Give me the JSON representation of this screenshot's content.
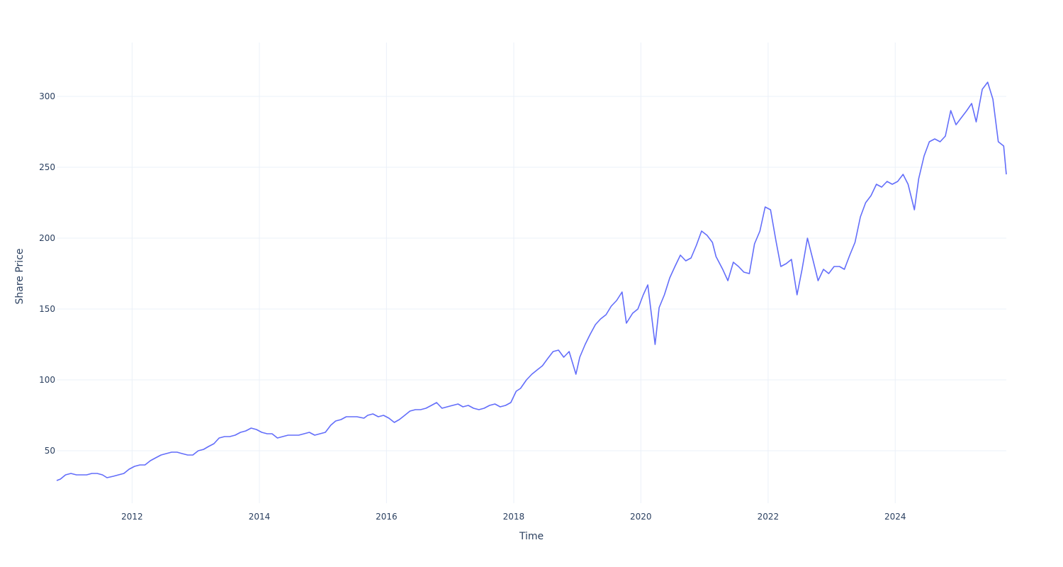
{
  "chart_data": {
    "type": "line",
    "title": "",
    "xlabel": "Time",
    "ylabel": "Share Price",
    "x_tick_labels": [
      "2012",
      "2014",
      "2016",
      "2018",
      "2020",
      "2022",
      "2024"
    ],
    "y_tick_labels": [
      "50",
      "100",
      "150",
      "200",
      "250",
      "300"
    ],
    "xlim": [
      "2010-10-25",
      "2025-09-30"
    ],
    "ylim": [
      13,
      338
    ],
    "grid": true,
    "legend": "none",
    "line_color": "#636efa",
    "grid_color": "#ebf0f8",
    "series": [
      {
        "name": "",
        "x": [
          "2010-10-25",
          "2010-11-15",
          "2010-12-15",
          "2011-01-15",
          "2011-02-15",
          "2011-03-15",
          "2011-04-15",
          "2011-05-15",
          "2011-06-15",
          "2011-07-15",
          "2011-08-10",
          "2011-09-15",
          "2011-10-15",
          "2011-11-15",
          "2011-12-15",
          "2012-01-15",
          "2012-02-15",
          "2012-03-15",
          "2012-04-15",
          "2012-05-15",
          "2012-06-15",
          "2012-07-15",
          "2012-08-15",
          "2012-09-15",
          "2012-10-15",
          "2012-11-15",
          "2012-12-15",
          "2013-01-15",
          "2013-02-15",
          "2013-03-15",
          "2013-04-15",
          "2013-05-15",
          "2013-06-15",
          "2013-07-15",
          "2013-08-15",
          "2013-09-15",
          "2013-10-15",
          "2013-11-15",
          "2013-12-15",
          "2014-01-15",
          "2014-02-15",
          "2014-03-15",
          "2014-04-15",
          "2014-05-15",
          "2014-06-15",
          "2014-07-15",
          "2014-08-15",
          "2014-09-15",
          "2014-10-15",
          "2014-11-15",
          "2014-12-15",
          "2015-01-15",
          "2015-02-15",
          "2015-03-15",
          "2015-04-15",
          "2015-05-15",
          "2015-06-15",
          "2015-07-15",
          "2015-08-25",
          "2015-09-15",
          "2015-10-15",
          "2015-11-15",
          "2015-12-15",
          "2016-01-15",
          "2016-02-15",
          "2016-03-15",
          "2016-04-15",
          "2016-05-15",
          "2016-06-15",
          "2016-07-15",
          "2016-08-15",
          "2016-09-15",
          "2016-10-15",
          "2016-11-15",
          "2016-12-15",
          "2017-01-15",
          "2017-02-15",
          "2017-03-15",
          "2017-04-15",
          "2017-05-15",
          "2017-06-15",
          "2017-07-15",
          "2017-08-15",
          "2017-09-15",
          "2017-10-15",
          "2017-11-15",
          "2017-12-15",
          "2018-01-15",
          "2018-02-09",
          "2018-03-15",
          "2018-04-15",
          "2018-05-15",
          "2018-06-15",
          "2018-07-15",
          "2018-08-15",
          "2018-09-15",
          "2018-10-15",
          "2018-11-15",
          "2018-12-24",
          "2019-01-15",
          "2019-02-15",
          "2019-03-15",
          "2019-04-15",
          "2019-05-15",
          "2019-06-15",
          "2019-07-15",
          "2019-08-15",
          "2019-09-15",
          "2019-10-10",
          "2019-11-15",
          "2019-12-15",
          "2020-01-15",
          "2020-02-10",
          "2020-03-23",
          "2020-04-15",
          "2020-05-15",
          "2020-06-15",
          "2020-07-15",
          "2020-08-15",
          "2020-09-15",
          "2020-10-15",
          "2020-11-15",
          "2020-12-15",
          "2021-01-15",
          "2021-02-15",
          "2021-03-08",
          "2021-04-15",
          "2021-05-15",
          "2021-06-15",
          "2021-07-15",
          "2021-08-15",
          "2021-09-15",
          "2021-10-15",
          "2021-11-15",
          "2021-12-15",
          "2022-01-15",
          "2022-02-15",
          "2022-03-15",
          "2022-04-15",
          "2022-05-15",
          "2022-06-16",
          "2022-07-15",
          "2022-08-15",
          "2022-09-15",
          "2022-10-15",
          "2022-11-15",
          "2022-12-15",
          "2023-01-15",
          "2023-02-15",
          "2023-03-15",
          "2023-04-15",
          "2023-05-15",
          "2023-06-15",
          "2023-07-15",
          "2023-08-15",
          "2023-09-15",
          "2023-10-15",
          "2023-11-15",
          "2023-12-15",
          "2024-01-15",
          "2024-02-15",
          "2024-03-15",
          "2024-04-20",
          "2024-05-15",
          "2024-06-15",
          "2024-07-15",
          "2024-08-15",
          "2024-09-15",
          "2024-10-15",
          "2024-11-15",
          "2024-12-15",
          "2025-01-15",
          "2025-02-15",
          "2025-03-15",
          "2025-04-10",
          "2025-05-15",
          "2025-06-15",
          "2025-07-15",
          "2025-08-15",
          "2025-09-15",
          "2025-09-30"
        ],
        "y": [
          29,
          30,
          33,
          34,
          33,
          33,
          33,
          34,
          34,
          33,
          31,
          32,
          33,
          34,
          37,
          39,
          40,
          40,
          43,
          45,
          47,
          48,
          49,
          49,
          48,
          47,
          47,
          50,
          51,
          53,
          55,
          59,
          60,
          60,
          61,
          63,
          64,
          66,
          65,
          63,
          62,
          62,
          59,
          60,
          61,
          61,
          61,
          62,
          63,
          61,
          62,
          63,
          68,
          71,
          72,
          74,
          74,
          74,
          73,
          75,
          76,
          74,
          75,
          73,
          70,
          72,
          75,
          78,
          79,
          79,
          80,
          82,
          84,
          80,
          81,
          82,
          83,
          81,
          82,
          80,
          79,
          80,
          82,
          83,
          81,
          82,
          84,
          92,
          94,
          100,
          104,
          107,
          110,
          115,
          120,
          121,
          116,
          120,
          104,
          116,
          125,
          132,
          139,
          143,
          146,
          152,
          156,
          162,
          140,
          147,
          150,
          160,
          167,
          125,
          151,
          160,
          172,
          180,
          188,
          184,
          186,
          195,
          205,
          202,
          197,
          187,
          178,
          170,
          183,
          180,
          176,
          175,
          196,
          205,
          222,
          220,
          198,
          180,
          182,
          185,
          160,
          178,
          200,
          185,
          170,
          178,
          175,
          180,
          180,
          178,
          188,
          197,
          215,
          225,
          230,
          238,
          236,
          240,
          238,
          240,
          245,
          238,
          220,
          242,
          258,
          268,
          270,
          268,
          272,
          290,
          280,
          285,
          290,
          295,
          282,
          305,
          310,
          298,
          268,
          265,
          245
        ]
      }
    ]
  }
}
